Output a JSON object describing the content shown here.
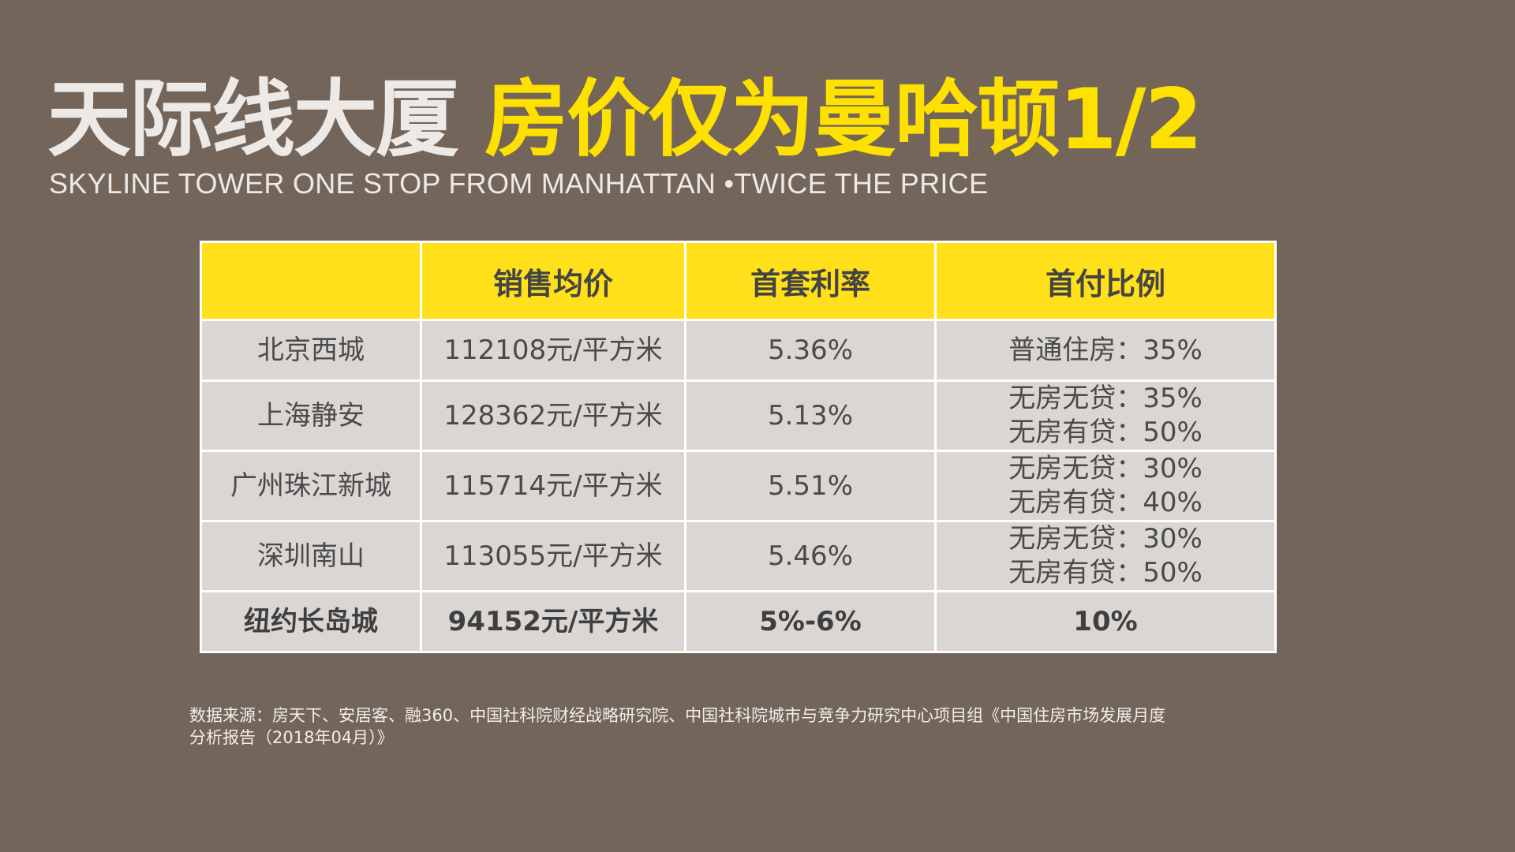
{
  "title": {
    "part1": "天际线大厦",
    "part2": "房价仅为曼哈顿1/2",
    "subtitle": "SKYLINE TOWER ONE STOP FROM MANHATTAN •TWICE THE PRICE"
  },
  "table": {
    "headers": [
      "",
      "销售均价",
      "首套利率",
      "首付比例"
    ],
    "rows": [
      {
        "city": "北京西城",
        "price": "112108元/平方米",
        "rate": "5.36%",
        "down_payment": [
          "普通住房：35%"
        ]
      },
      {
        "city": "上海静安",
        "price": "128362元/平方米",
        "rate": "5.13%",
        "down_payment": [
          "无房无贷：35%",
          "无房有贷：50%"
        ]
      },
      {
        "city": "广州珠江新城",
        "price": "115714元/平方米",
        "rate": "5.51%",
        "down_payment": [
          "无房无贷：30%",
          "无房有贷：40%"
        ]
      },
      {
        "city": "深圳南山",
        "price": "113055元/平方米",
        "rate": "5.46%",
        "down_payment": [
          "无房无贷：30%",
          "无房有贷：50%"
        ]
      },
      {
        "city": "纽约长岛城",
        "price": "94152元/平方米",
        "rate": "5%-6%",
        "down_payment": [
          "10%"
        ]
      }
    ]
  },
  "source": {
    "line1": "数据来源：房天下、安居客、融360、中国社科院财经战略研究院、中国社科院城市与竞争力研究中心项目组《中国住房市场发展月度",
    "line2": "分析报告（2018年04月）》"
  },
  "colors": {
    "background": "#73655a",
    "accent_yellow": "#ffe100",
    "header_fill": "#ffe01a",
    "cell_fill": "#dad6d3"
  }
}
